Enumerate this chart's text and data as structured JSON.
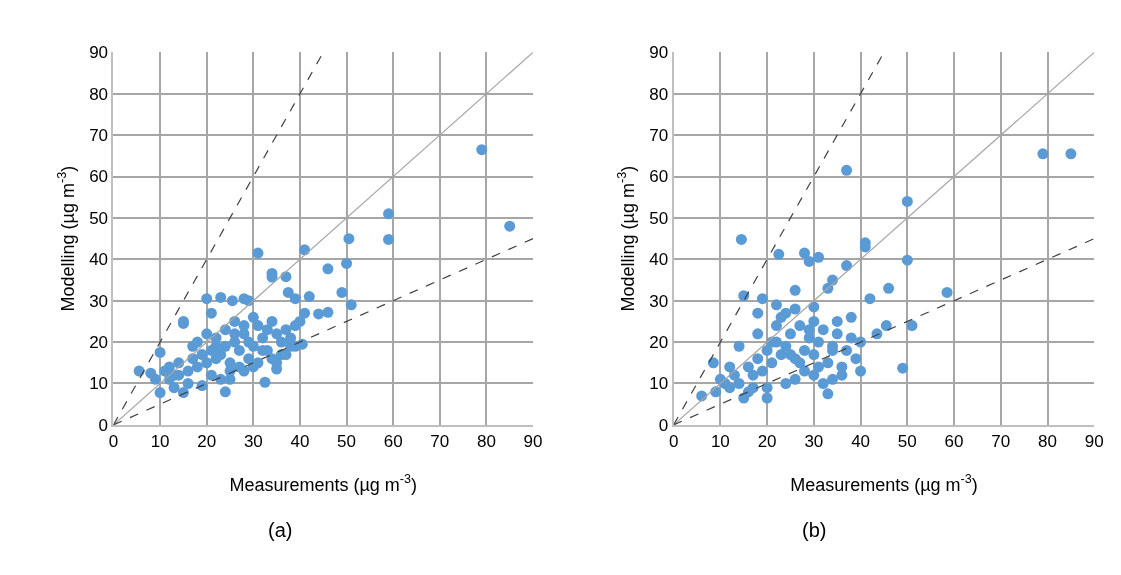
{
  "chart_data": [
    {
      "type": "scatter",
      "xlabel": "Measurements (µg m$^{-3}$)",
      "ylabel": "Modelling (µg m$^{-3}$)",
      "annotations": [
        "(a)"
      ],
      "xlim": [
        0,
        90
      ],
      "ylim": [
        0,
        90
      ],
      "xticks": [
        0,
        10,
        20,
        30,
        40,
        50,
        60,
        70,
        80,
        90
      ],
      "yticks": [
        0,
        10,
        20,
        30,
        40,
        50,
        60,
        70,
        80,
        90
      ],
      "grid": true,
      "marker": "circle",
      "series": [
        {
          "color": "#5b9bd5",
          "x": [
            79,
            85,
            59,
            59,
            50.5,
            50,
            51,
            49,
            46,
            41,
            31,
            34,
            34,
            37,
            37.5,
            39,
            42,
            44,
            46,
            41,
            40.5,
            32.5,
            35,
            35,
            5.5,
            20,
            23,
            25.5,
            28,
            29,
            15,
            15,
            10,
            10,
            15,
            24,
            13,
            19,
            8,
            9,
            11,
            12,
            13,
            14,
            16,
            17,
            18,
            19,
            20,
            21,
            22,
            23,
            24,
            25,
            26,
            27,
            28,
            29,
            30,
            31,
            32,
            33,
            34,
            35,
            36,
            37,
            38,
            39,
            40,
            18,
            20,
            22,
            24,
            26,
            28,
            30,
            32,
            34,
            36,
            38,
            12,
            14,
            16,
            21,
            23,
            25,
            27,
            29,
            31,
            33,
            37,
            39,
            17,
            22,
            26,
            30,
            21,
            25,
            28
          ],
          "values": [
            66.5,
            48,
            51,
            44.8,
            45,
            39,
            29,
            32,
            37.7,
            42.3,
            41.5,
            36.6,
            35.7,
            35.8,
            32,
            30.5,
            31,
            26.8,
            27.2,
            27,
            19.5,
            10.3,
            13.5,
            15,
            13,
            30.5,
            30.8,
            30,
            30.5,
            30,
            25,
            24.5,
            17.5,
            7.8,
            7.8,
            8,
            9,
            9.5,
            12.5,
            11,
            13,
            14,
            12,
            15,
            13,
            16,
            14,
            17,
            15,
            18,
            16,
            17,
            19,
            15,
            20,
            18,
            22,
            20,
            19,
            24,
            21,
            23,
            25,
            22,
            20,
            23,
            21,
            24,
            25,
            20,
            22,
            21,
            23,
            25,
            24,
            26,
            18,
            16,
            17,
            19,
            11,
            12,
            10,
            12,
            11,
            13,
            14,
            16,
            15,
            18,
            17,
            19,
            19,
            19,
            22,
            14,
            27,
            11,
            13
          ]
        },
        {
          "type": "line",
          "color": "#a6a6a6",
          "line_style": "solid",
          "marker": "none",
          "x": [
            0,
            90
          ],
          "values": [
            0,
            90
          ]
        },
        {
          "type": "line",
          "color": "#404040",
          "line_style": "dashed",
          "marker": "none",
          "x": [
            0,
            45
          ],
          "values": [
            0,
            90
          ]
        },
        {
          "type": "line",
          "color": "#404040",
          "line_style": "dashed",
          "marker": "none",
          "x": [
            0,
            90
          ],
          "values": [
            0,
            45
          ]
        }
      ]
    },
    {
      "type": "scatter",
      "xlabel": "Measurements (µg m$^{-3}$)",
      "ylabel": "Modelling (µg m$^{-3}$)",
      "annotations": [
        "(b)"
      ],
      "xlim": [
        0,
        90
      ],
      "ylim": [
        0,
        90
      ],
      "xticks": [
        0,
        10,
        20,
        30,
        40,
        50,
        60,
        70,
        80,
        90
      ],
      "yticks": [
        0,
        10,
        20,
        30,
        40,
        50,
        60,
        70,
        80,
        90
      ],
      "grid": true,
      "marker": "circle",
      "series": [
        {
          "color": "#5b9bd5",
          "x": [
            79,
            85,
            37,
            50,
            14.5,
            41,
            41,
            50,
            58.5,
            22.5,
            28,
            31,
            29,
            37,
            33,
            34,
            46,
            15,
            19,
            30,
            42,
            26,
            22,
            40,
            45.5,
            51,
            49,
            43.5,
            40,
            15,
            6,
            20,
            33,
            8.5,
            11,
            9,
            10,
            12,
            13,
            14,
            16,
            17,
            18,
            19,
            20,
            21,
            22,
            23,
            24,
            25,
            26,
            27,
            28,
            29,
            30,
            31,
            32,
            33,
            34,
            35,
            36,
            37,
            38,
            39,
            12,
            14,
            16,
            18,
            20,
            22,
            24,
            26,
            28,
            30,
            32,
            34,
            36,
            21,
            23,
            25,
            27,
            29,
            31,
            35,
            38,
            18,
            24,
            30,
            17,
            26,
            34
          ],
          "values": [
            65.5,
            65.5,
            61.5,
            54,
            44.8,
            44,
            43,
            39.8,
            32,
            41.2,
            41.5,
            40.5,
            39.5,
            38.5,
            33,
            35,
            33,
            31.2,
            30.5,
            28.5,
            30.5,
            32.5,
            29,
            20,
            24,
            24,
            13.7,
            22,
            13,
            6.5,
            7,
            6.5,
            7.5,
            15,
            10,
            8,
            11,
            9,
            12,
            10,
            14,
            12,
            16,
            13,
            18,
            15,
            20,
            17,
            19,
            22,
            16,
            24,
            18,
            21,
            17,
            20,
            23,
            15,
            19,
            22,
            14,
            18,
            21,
            16,
            14,
            19,
            8,
            22,
            9,
            24,
            10,
            11,
            13,
            12,
            10,
            11,
            12,
            20,
            26,
            17,
            15,
            23,
            14,
            25,
            26,
            27,
            27,
            25,
            9,
            28,
            18
          ]
        },
        {
          "type": "line",
          "color": "#a6a6a6",
          "line_style": "solid",
          "marker": "none",
          "x": [
            0,
            90
          ],
          "values": [
            0,
            90
          ]
        },
        {
          "type": "line",
          "color": "#404040",
          "line_style": "dashed",
          "marker": "none",
          "x": [
            0,
            45
          ],
          "values": [
            0,
            90
          ]
        },
        {
          "type": "line",
          "color": "#404040",
          "line_style": "dashed",
          "marker": "none",
          "x": [
            0,
            90
          ],
          "values": [
            0,
            45
          ]
        }
      ]
    }
  ]
}
